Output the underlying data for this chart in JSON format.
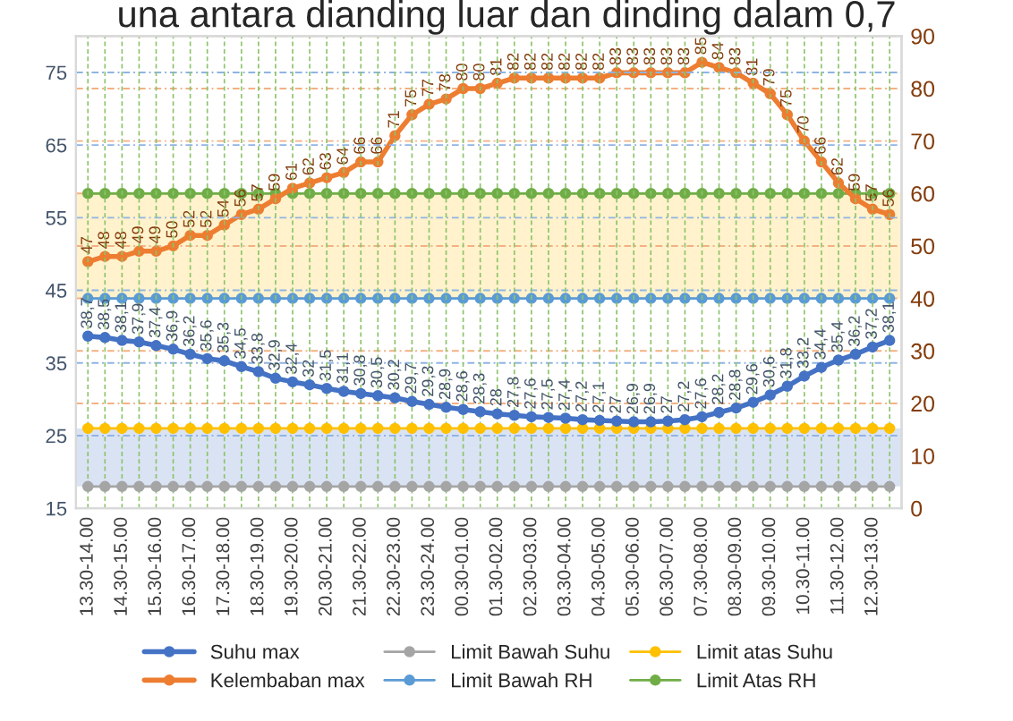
{
  "chart_data": {
    "type": "line",
    "title": "una antara dianding luar dan dinding dalam 0,7",
    "categories": [
      "13.30-14.00",
      null,
      "14.30-15.00",
      null,
      "15.30-16.00",
      null,
      "16.30-17.00",
      null,
      "17.30-18.00",
      null,
      "18.30-19.00",
      null,
      "19.30-20.00",
      null,
      "20.30-21.00",
      null,
      "21.30-22.00",
      null,
      "22.30-23.00",
      null,
      "23.30-24.00",
      null,
      "00.30-01.00",
      null,
      "01.30-02.00",
      null,
      "02.30-03.00",
      null,
      "03.30-04.00",
      null,
      "04.30-05.00",
      null,
      "05.30-06.00",
      null,
      "06.30-07.00",
      null,
      "07.30-08.00",
      null,
      "08.30-09.00",
      null,
      "09.30-10.00",
      null,
      "10.30-11.00",
      null,
      "11.30-12.00",
      null,
      "12.30-13.00",
      null
    ],
    "series": [
      {
        "name": "Suhu max",
        "color": "#4472c4",
        "values": [
          38.7,
          38.5,
          38.1,
          37.9,
          37.4,
          36.9,
          36.2,
          35.6,
          35.3,
          34.5,
          33.8,
          32.9,
          32.4,
          32,
          31.5,
          31.1,
          30.8,
          30.5,
          30.2,
          29.7,
          29.3,
          28.9,
          28.6,
          28.3,
          28,
          27.8,
          27.6,
          27.5,
          27.4,
          27.2,
          27.1,
          27,
          26.9,
          26.9,
          27,
          27.2,
          27.6,
          28.2,
          28.8,
          29.6,
          30.6,
          31.8,
          33.2,
          34.4,
          35.4,
          36.2,
          37.2,
          38.1
        ],
        "value_labels": [
          "38,7",
          "38,5",
          "38,1",
          "37,9",
          "37,4",
          "36,9",
          "36,2",
          "35,6",
          "35,3",
          "34,5",
          "33,8",
          "32,9",
          "32,4",
          "32",
          "31,5",
          "31,1",
          "30,8",
          "30,5",
          "30,2",
          "29,7",
          "29,3",
          "28,9",
          "28,6",
          "28,3",
          "28",
          "27,8",
          "27,6",
          "27,5",
          "27,4",
          "27,2",
          "27,1",
          "27",
          "26,9",
          "26,9",
          "27",
          "27,2",
          "27,6",
          "28,2",
          "28,8",
          "29,6",
          "30,6",
          "31,8",
          "33,2",
          "34,4",
          "35,4",
          "36,2",
          "37,2",
          "38,1"
        ]
      },
      {
        "name": "Limit Bawah Suhu",
        "color": "#a5a5a5",
        "values": [
          18,
          18,
          18,
          18,
          18,
          18,
          18,
          18,
          18,
          18,
          18,
          18,
          18,
          18,
          18,
          18,
          18,
          18,
          18,
          18,
          18,
          18,
          18,
          18,
          18,
          18,
          18,
          18,
          18,
          18,
          18,
          18,
          18,
          18,
          18,
          18,
          18,
          18,
          18,
          18,
          18,
          18,
          18,
          18,
          18,
          18,
          18,
          18
        ]
      },
      {
        "name": "Limit atas Suhu",
        "color": "#ffc000",
        "values": [
          26,
          26,
          26,
          26,
          26,
          26,
          26,
          26,
          26,
          26,
          26,
          26,
          26,
          26,
          26,
          26,
          26,
          26,
          26,
          26,
          26,
          26,
          26,
          26,
          26,
          26,
          26,
          26,
          26,
          26,
          26,
          26,
          26,
          26,
          26,
          26,
          26,
          26,
          26,
          26,
          26,
          26,
          26,
          26,
          26,
          26,
          26,
          26
        ]
      },
      {
        "name": "Kelembaban max",
        "color": "#ed7d31",
        "axis": "y2",
        "values": [
          47,
          48,
          48,
          49,
          49,
          50,
          52,
          52,
          54,
          56,
          57,
          59,
          61,
          62,
          63,
          64,
          66,
          66,
          71,
          75,
          77,
          78,
          80,
          80,
          81,
          82,
          82,
          82,
          82,
          82,
          82,
          83,
          83,
          83,
          83,
          83,
          85,
          84,
          83,
          81,
          79,
          75,
          70,
          66,
          62,
          59,
          57,
          56
        ],
        "value_labels": [
          "47",
          "48",
          "48",
          "49",
          "49",
          "50",
          "52",
          "52",
          "54",
          "56",
          "57",
          "59",
          "61",
          "62",
          "63",
          "64",
          "66",
          "66",
          "71",
          "75",
          "77",
          "78",
          "80",
          "80",
          "81",
          "82",
          "82",
          "82",
          "82",
          "82",
          "82",
          "83",
          "83",
          "83",
          "83",
          "83",
          "85",
          "84",
          "83",
          "81",
          "79",
          "75",
          "70",
          "66",
          "62",
          "59",
          "57",
          "56"
        ]
      },
      {
        "name": "Limit Bawah RH",
        "color": "#5b9bd5",
        "axis": "y2",
        "values": [
          40,
          40,
          40,
          40,
          40,
          40,
          40,
          40,
          40,
          40,
          40,
          40,
          40,
          40,
          40,
          40,
          40,
          40,
          40,
          40,
          40,
          40,
          40,
          40,
          40,
          40,
          40,
          40,
          40,
          40,
          40,
          40,
          40,
          40,
          40,
          40,
          40,
          40,
          40,
          40,
          40,
          40,
          40,
          40,
          40,
          40,
          40,
          40
        ]
      },
      {
        "name": "Limit Atas RH",
        "color": "#70ad47",
        "axis": "y2",
        "values": [
          60,
          60,
          60,
          60,
          60,
          60,
          60,
          60,
          60,
          60,
          60,
          60,
          60,
          60,
          60,
          60,
          60,
          60,
          60,
          60,
          60,
          60,
          60,
          60,
          60,
          60,
          60,
          60,
          60,
          60,
          60,
          60,
          60,
          60,
          60,
          60,
          60,
          60,
          60,
          60,
          60,
          60,
          60,
          60,
          60,
          60,
          60,
          60
        ]
      }
    ],
    "bands": [
      {
        "axis": "y",
        "from": 18,
        "to": 26,
        "color": "#dae3f3"
      },
      {
        "axis": "y2",
        "from": 40,
        "to": 60,
        "color": "#fff2cc"
      }
    ],
    "ylim": [
      15,
      80
    ],
    "yticks": [
      15,
      25,
      35,
      45,
      55,
      65,
      75
    ],
    "y2lim": [
      0,
      90
    ],
    "y2ticks": [
      0,
      10,
      20,
      30,
      40,
      50,
      60,
      70,
      80,
      90
    ],
    "grid": true,
    "marker": "circle",
    "line_style": "solid",
    "legend": "bottom"
  }
}
